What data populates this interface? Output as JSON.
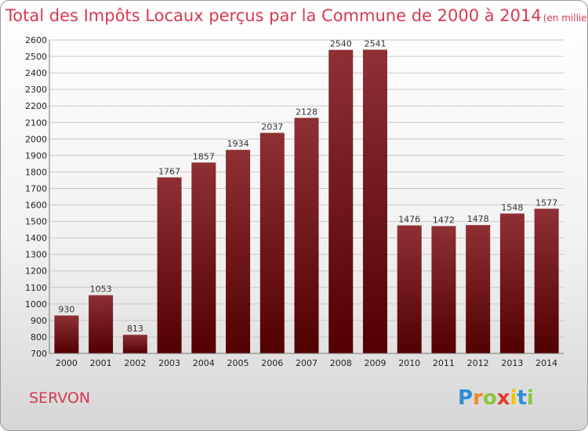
{
  "chart_data": {
    "type": "bar",
    "title": "Total des Impôts Locaux perçus par la Commune de 2000 à 2014",
    "unit": "(en milliers d'€)",
    "categories": [
      "2000",
      "2001",
      "2002",
      "2003",
      "2004",
      "2005",
      "2006",
      "2007",
      "2008",
      "2009",
      "2010",
      "2011",
      "2012",
      "2013",
      "2014"
    ],
    "values": [
      930,
      1053,
      813,
      1767,
      1857,
      1934,
      2037,
      2128,
      2540,
      2541,
      1476,
      1472,
      1478,
      1548,
      1577
    ],
    "ylim": [
      700,
      2600
    ],
    "yticks": [
      700,
      800,
      900,
      1000,
      1100,
      1200,
      1300,
      1400,
      1500,
      1600,
      1700,
      1800,
      1900,
      2000,
      2100,
      2200,
      2300,
      2400,
      2500,
      2600
    ],
    "xlabel": "",
    "ylabel": "",
    "grid": true,
    "legend": "none"
  },
  "commune": "SERVON",
  "brand": {
    "letters": [
      "P",
      "r",
      "o",
      "x",
      "i",
      "t",
      "i"
    ],
    "colors": [
      "#2a8fd6",
      "#f08a1c",
      "#8cc63f",
      "#e63b2e",
      "#f5c400",
      "#2a8fd6",
      "#8cc63f"
    ]
  },
  "colors": {
    "bar_light": "#8e3034",
    "bar_dark": "#520000",
    "grid": "#c8c8c8",
    "accent": "#d63a52"
  }
}
